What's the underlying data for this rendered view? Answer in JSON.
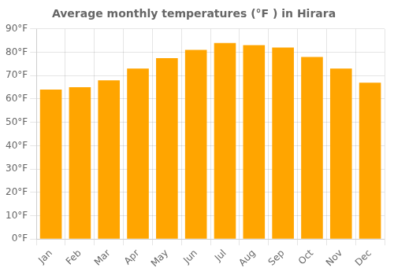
{
  "chart_data": {
    "type": "bar",
    "title": "Average monthly temperatures (°F ) in Hirara",
    "categories": [
      "Jan",
      "Feb",
      "Mar",
      "Apr",
      "May",
      "Jun",
      "Jul",
      "Aug",
      "Sep",
      "Oct",
      "Nov",
      "Dec"
    ],
    "values": [
      64.0,
      65.0,
      68.0,
      73.0,
      77.5,
      81.0,
      84.0,
      83.0,
      82.0,
      78.0,
      73.0,
      67.0
    ],
    "color": "#FFA500",
    "ylim": [
      0,
      90
    ],
    "yticks": [
      {
        "value": 0,
        "label": "0°F"
      },
      {
        "value": 10,
        "label": "10°F"
      },
      {
        "value": 20,
        "label": "20°F"
      },
      {
        "value": 30,
        "label": "30°F"
      },
      {
        "value": 40,
        "label": "40°F"
      },
      {
        "value": 50,
        "label": "50°F"
      },
      {
        "value": 60,
        "label": "60°F"
      },
      {
        "value": 70,
        "label": "70°F"
      },
      {
        "value": 80,
        "label": "80°F"
      },
      {
        "value": 90,
        "label": "90°F"
      }
    ],
    "grid": true
  }
}
